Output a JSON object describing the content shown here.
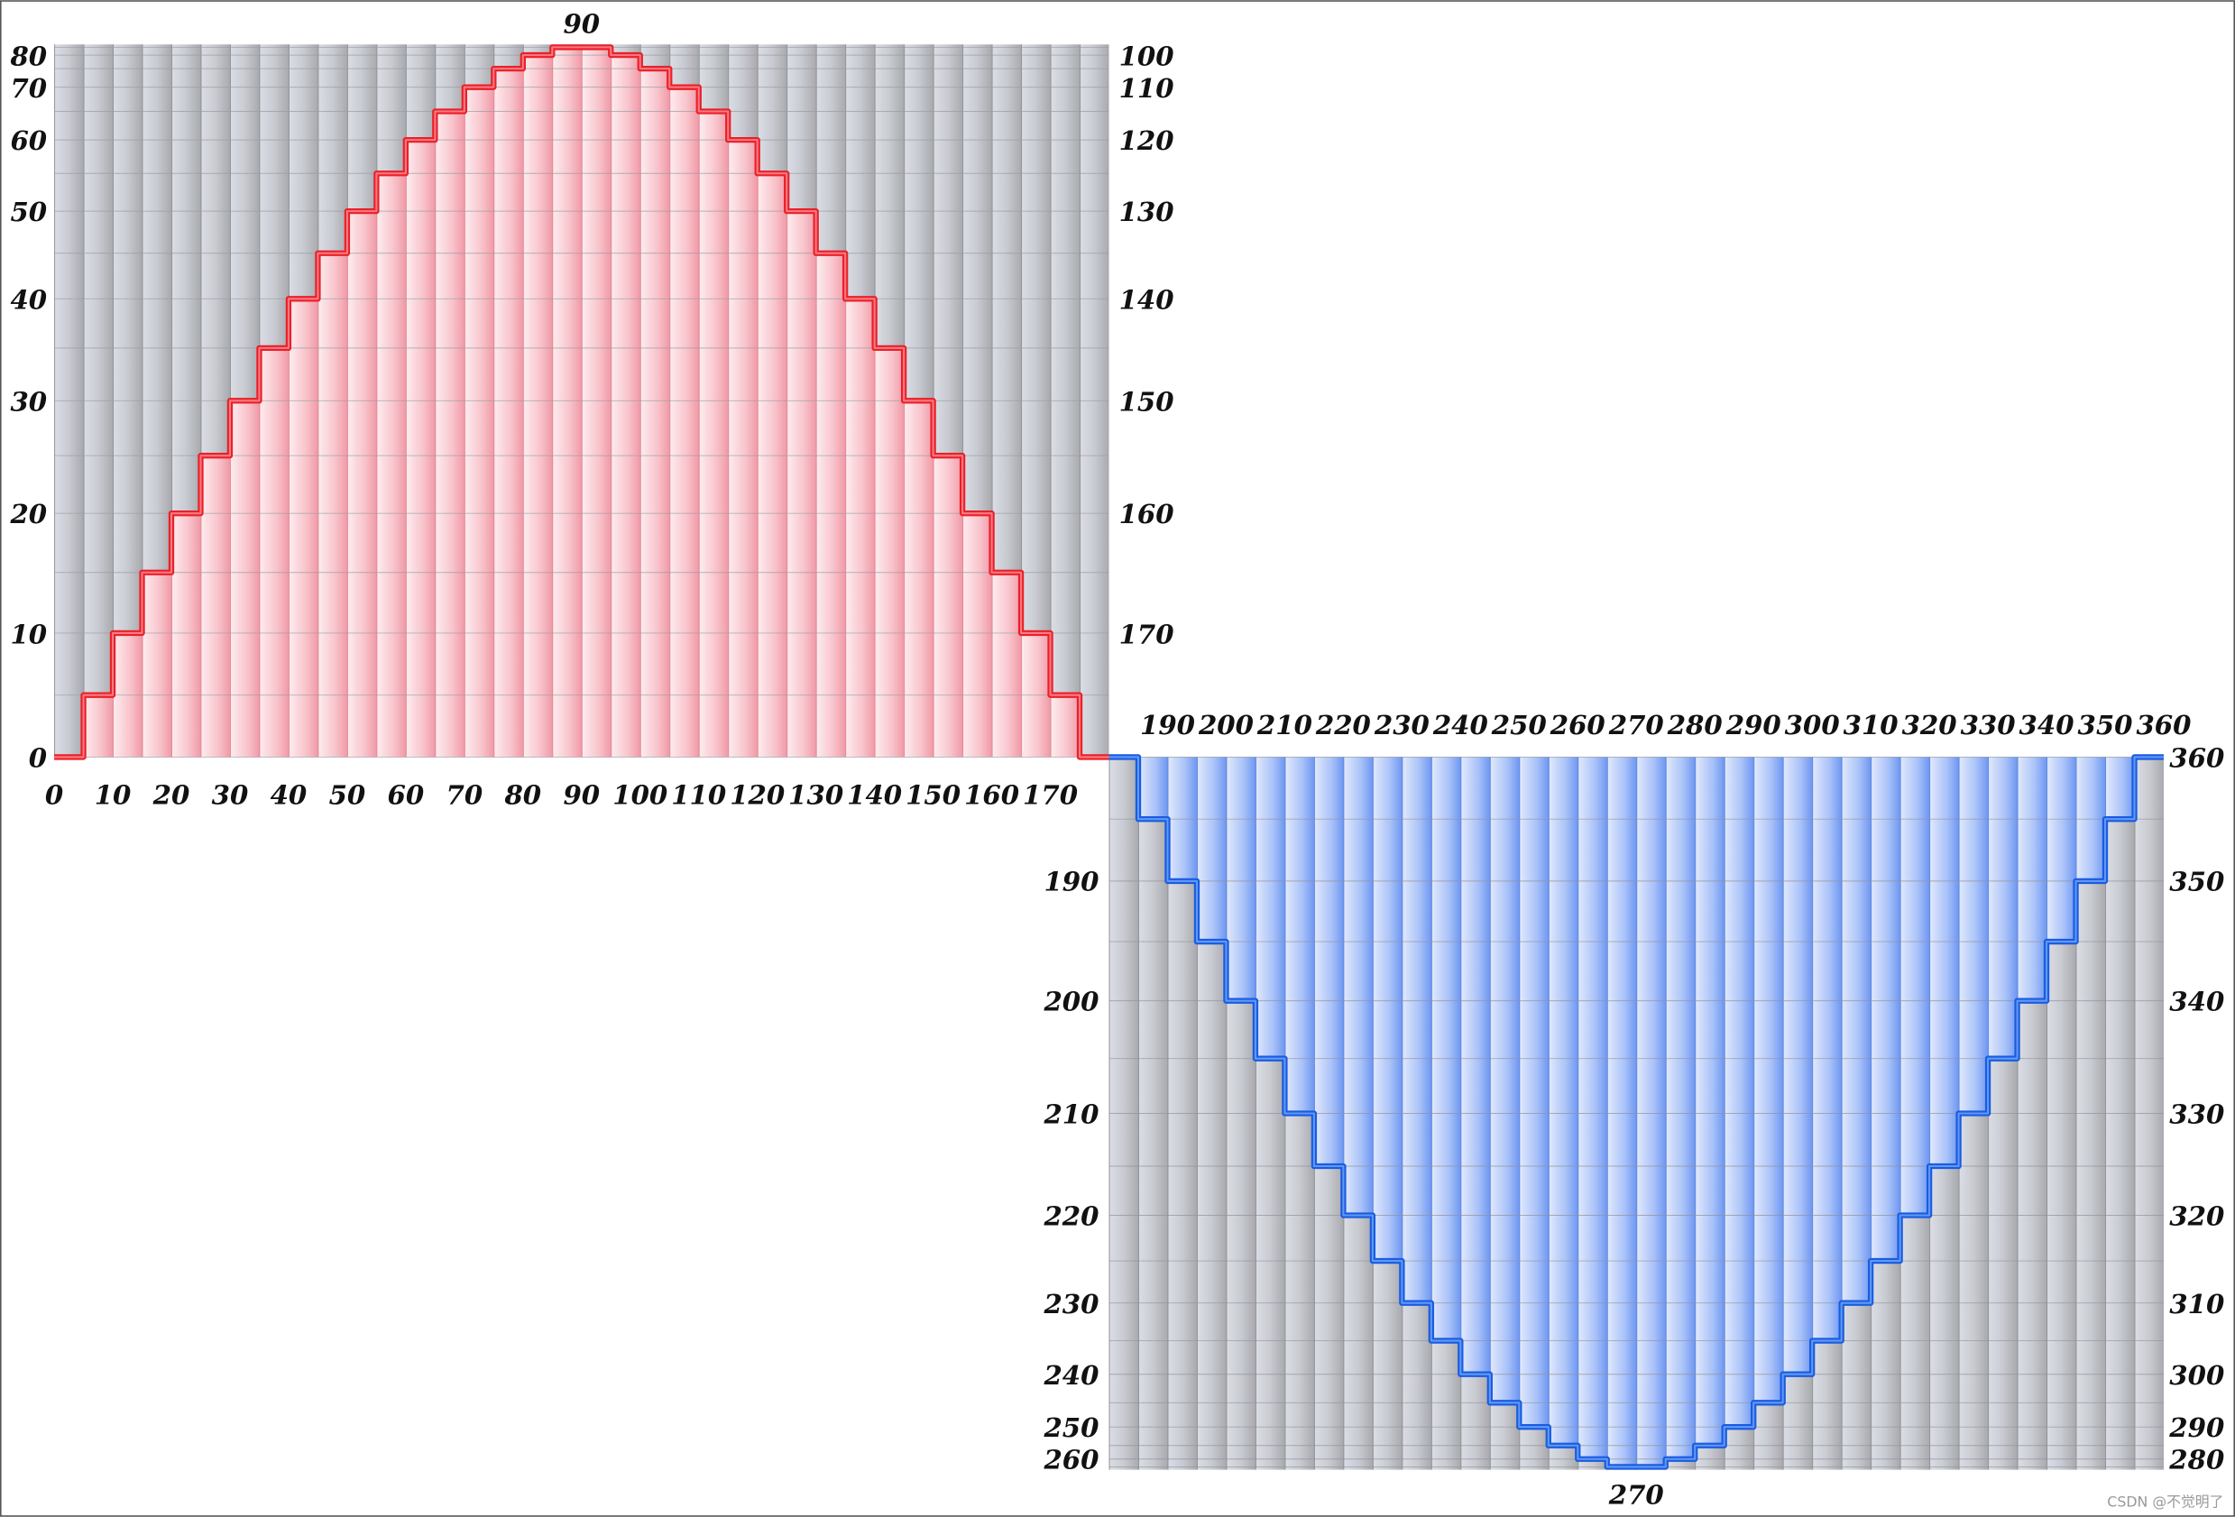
{
  "chart_data": {
    "type": "line",
    "subtype": "step",
    "x_range": [
      0,
      360
    ],
    "y_range": [
      -1,
      1
    ],
    "grid": true,
    "step_degrees": 5,
    "series": [
      {
        "x_range": [
          0,
          180
        ],
        "color": "#e8202a",
        "fill_color": "#f7a9b4",
        "values": [
          0,
          0.087,
          0.174,
          0.259,
          0.342,
          0.423,
          0.5,
          0.574,
          0.643,
          0.707,
          0.766,
          0.819,
          0.866,
          0.906,
          0.94,
          0.966,
          0.985,
          0.996,
          0.996,
          0.985,
          0.966,
          0.94,
          0.906,
          0.866,
          0.819,
          0.766,
          0.707,
          0.643,
          0.574,
          0.5,
          0.423,
          0.342,
          0.259,
          0.174,
          0.087,
          0
        ]
      },
      {
        "x_range": [
          180,
          360
        ],
        "color": "#1a5be0",
        "fill_color": "#7ea6f5",
        "values": [
          0,
          -0.087,
          -0.174,
          -0.259,
          -0.342,
          -0.423,
          -0.5,
          -0.574,
          -0.643,
          -0.707,
          -0.766,
          -0.819,
          -0.866,
          -0.906,
          -0.94,
          -0.966,
          -0.985,
          -0.996,
          -0.996,
          -0.985,
          -0.966,
          -0.94,
          -0.906,
          -0.866,
          -0.819,
          -0.766,
          -0.707,
          -0.643,
          -0.574,
          -0.5,
          -0.423,
          -0.342,
          -0.259,
          -0.174,
          -0.087,
          0
        ]
      }
    ],
    "upper_chart": {
      "left_labels": [
        "0",
        "10",
        "20",
        "30",
        "40",
        "50",
        "60",
        "70",
        "80"
      ],
      "right_labels": [
        "170",
        "160",
        "150",
        "140",
        "130",
        "120",
        "110",
        "100"
      ],
      "top_label": "90",
      "bottom_labels": [
        "0",
        "10",
        "20",
        "30",
        "40",
        "50",
        "60",
        "70",
        "80",
        "90",
        "100",
        "110",
        "120",
        "130",
        "140",
        "150",
        "160",
        "170"
      ]
    },
    "lower_chart": {
      "top_labels": [
        "190",
        "200",
        "210",
        "220",
        "230",
        "240",
        "250",
        "260",
        "270",
        "280",
        "290",
        "300",
        "310",
        "320",
        "330",
        "340",
        "350",
        "360"
      ],
      "left_labels": [
        "190",
        "200",
        "210",
        "220",
        "230",
        "240",
        "250",
        "260"
      ],
      "right_labels": [
        "360",
        "350",
        "340",
        "330",
        "320",
        "310",
        "300",
        "290",
        "280"
      ],
      "bottom_label": "270"
    }
  },
  "watermark": "CSDN @不觉明了"
}
